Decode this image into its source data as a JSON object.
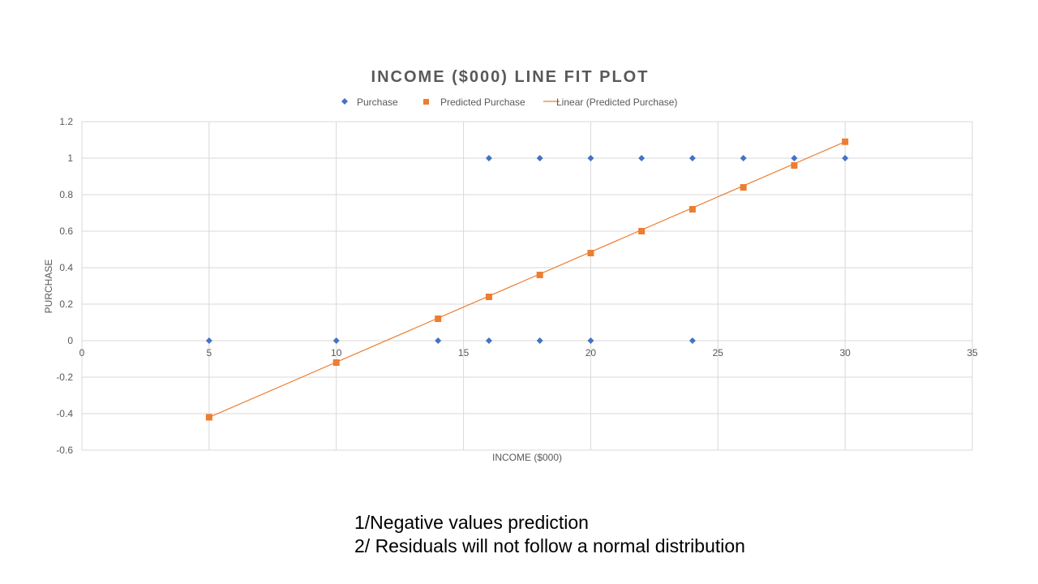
{
  "chart_data": {
    "type": "scatter",
    "title": "INCOME ($000) LINE FIT  PLOT",
    "xlabel": "INCOME ($000)",
    "ylabel": "PURCHASE",
    "xlim": [
      0,
      35
    ],
    "ylim": [
      -0.6,
      1.2
    ],
    "x_ticks": [
      "0",
      "5",
      "10",
      "15",
      "20",
      "25",
      "30",
      "35"
    ],
    "x_tick_values": [
      0,
      5,
      10,
      15,
      20,
      25,
      30,
      35
    ],
    "y_ticks": [
      "1.2",
      "1",
      "0.8",
      "0.6",
      "0.4",
      "0.2",
      "0",
      "-0.2",
      "-0.4",
      "-0.6"
    ],
    "y_tick_values": [
      1.2,
      1,
      0.8,
      0.6,
      0.4,
      0.2,
      0,
      -0.2,
      -0.4,
      -0.6
    ],
    "grid": true,
    "legend_position": "top",
    "series": [
      {
        "name": "Purchase",
        "marker": "diamond",
        "color": "#4472C4",
        "points": [
          {
            "x": 5,
            "y": 0
          },
          {
            "x": 10,
            "y": 0
          },
          {
            "x": 14,
            "y": 0
          },
          {
            "x": 16,
            "y": 0
          },
          {
            "x": 16,
            "y": 1
          },
          {
            "x": 18,
            "y": 0
          },
          {
            "x": 18,
            "y": 1
          },
          {
            "x": 20,
            "y": 0
          },
          {
            "x": 20,
            "y": 1
          },
          {
            "x": 22,
            "y": 1
          },
          {
            "x": 24,
            "y": 0
          },
          {
            "x": 24,
            "y": 1
          },
          {
            "x": 26,
            "y": 1
          },
          {
            "x": 28,
            "y": 1
          },
          {
            "x": 30,
            "y": 1
          }
        ]
      },
      {
        "name": "Predicted Purchase",
        "marker": "square",
        "color": "#ED7D31",
        "points": [
          {
            "x": 5,
            "y": -0.42
          },
          {
            "x": 10,
            "y": -0.12
          },
          {
            "x": 14,
            "y": 0.12
          },
          {
            "x": 16,
            "y": 0.24
          },
          {
            "x": 18,
            "y": 0.36
          },
          {
            "x": 20,
            "y": 0.48
          },
          {
            "x": 22,
            "y": 0.6
          },
          {
            "x": 24,
            "y": 0.72
          },
          {
            "x": 26,
            "y": 0.84
          },
          {
            "x": 28,
            "y": 0.96
          },
          {
            "x": 30,
            "y": 1.09
          }
        ]
      }
    ],
    "trendline": {
      "name": "Linear (Predicted Purchase)",
      "color": "#ED7D31",
      "from": {
        "x": 5,
        "y": -0.42
      },
      "to": {
        "x": 30,
        "y": 1.09
      }
    }
  },
  "notes": {
    "line1": "1/Negative values prediction",
    "line2": "2/ Residuals will not follow a normal distribution"
  }
}
